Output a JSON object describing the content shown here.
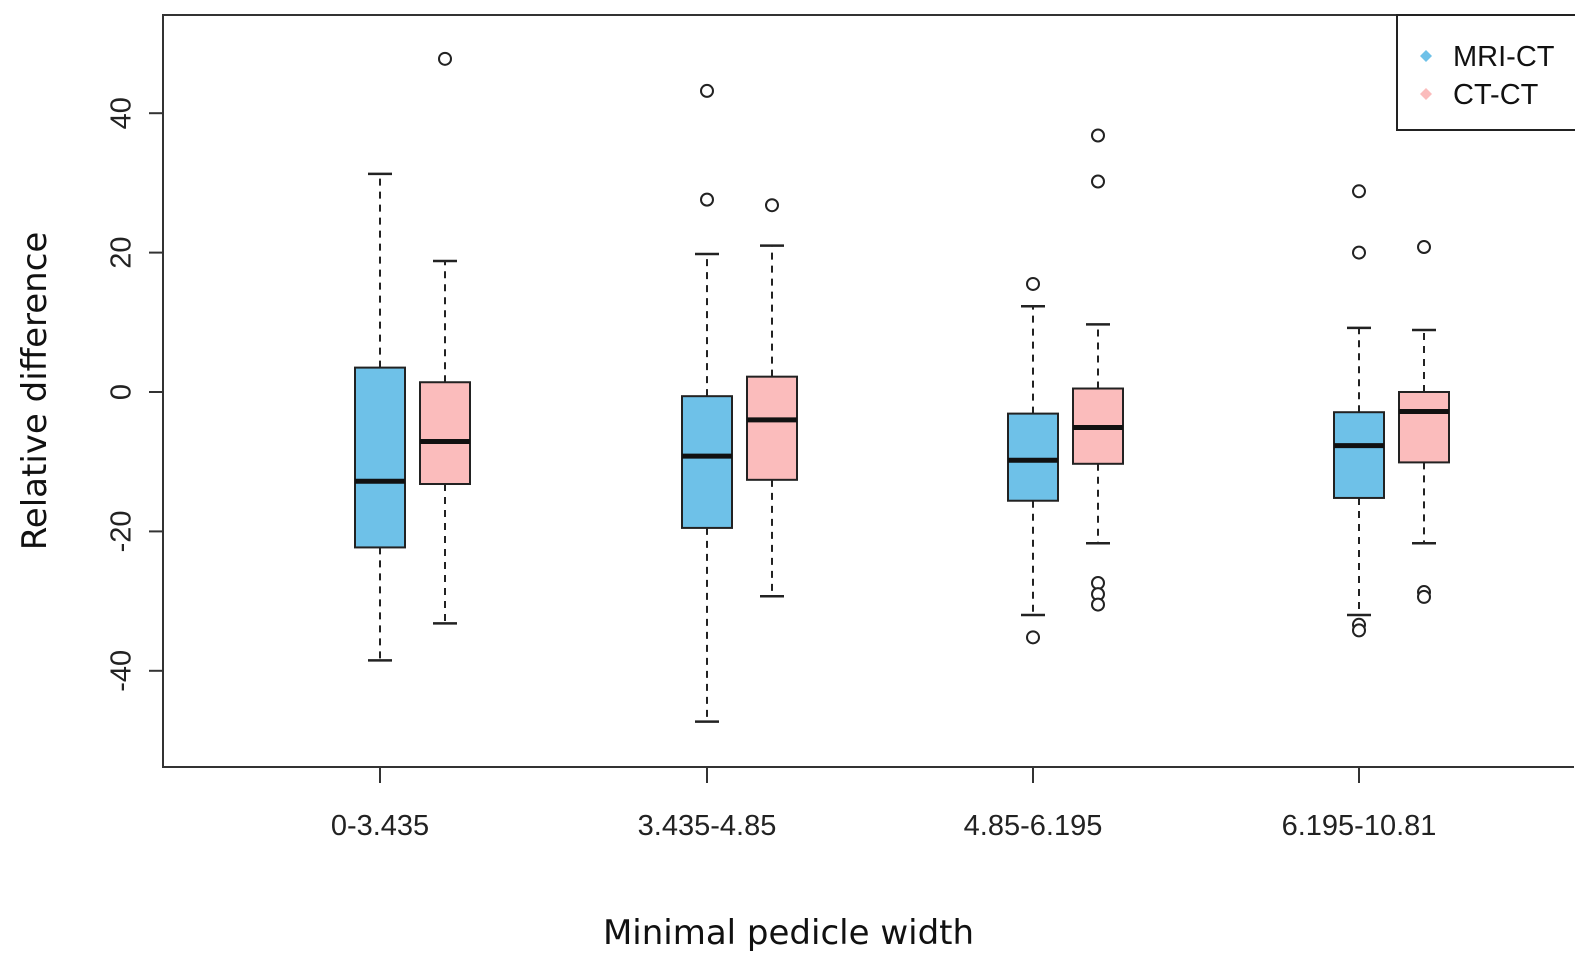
{
  "chart_data": {
    "type": "boxplot",
    "title": "",
    "xlabel": "Minimal pedicle width",
    "ylabel": "Relative difference",
    "ylim": [
      -54,
      54
    ],
    "yticks": [
      -40,
      -20,
      0,
      20,
      40
    ],
    "grid": false,
    "legend_position": "top-right",
    "categories": [
      "0-3.435",
      "3.435-4.85",
      "4.85-6.195",
      "6.195-10.81"
    ],
    "series": [
      {
        "name": "MRI-CT",
        "color": "#6ec1e8",
        "boxes": [
          {
            "whisker_low": -38.5,
            "q1": -22.3,
            "median": -12.8,
            "q3": 3.5,
            "whisker_high": 31.3,
            "outliers": []
          },
          {
            "whisker_low": -47.3,
            "q1": -19.5,
            "median": -9.2,
            "q3": -0.6,
            "whisker_high": 19.8,
            "outliers": [
              27.6,
              43.2
            ]
          },
          {
            "whisker_low": -32.0,
            "q1": -15.6,
            "median": -9.8,
            "q3": -3.1,
            "whisker_high": 12.3,
            "outliers": [
              15.5,
              -35.2
            ]
          },
          {
            "whisker_low": -32.0,
            "q1": -15.2,
            "median": -7.7,
            "q3": -2.9,
            "whisker_high": 9.2,
            "outliers": [
              28.8,
              20.0,
              -33.4,
              -34.2
            ]
          }
        ]
      },
      {
        "name": "CT-CT",
        "color": "#fbbcbc",
        "boxes": [
          {
            "whisker_low": -33.2,
            "q1": -13.2,
            "median": -7.1,
            "q3": 1.4,
            "whisker_high": 18.8,
            "outliers": [
              47.8
            ]
          },
          {
            "whisker_low": -29.3,
            "q1": -12.6,
            "median": -4.0,
            "q3": 2.2,
            "whisker_high": 21.0,
            "outliers": [
              26.8
            ]
          },
          {
            "whisker_low": -21.7,
            "q1": -10.3,
            "median": -5.1,
            "q3": 0.5,
            "whisker_high": 9.7,
            "outliers": [
              36.8,
              30.2,
              -27.4,
              -29.0,
              -30.5
            ]
          },
          {
            "whisker_low": -21.7,
            "q1": -10.1,
            "median": -2.8,
            "q3": 0.0,
            "whisker_high": 8.9,
            "outliers": [
              20.8,
              -28.7,
              -29.4
            ]
          }
        ]
      }
    ]
  }
}
